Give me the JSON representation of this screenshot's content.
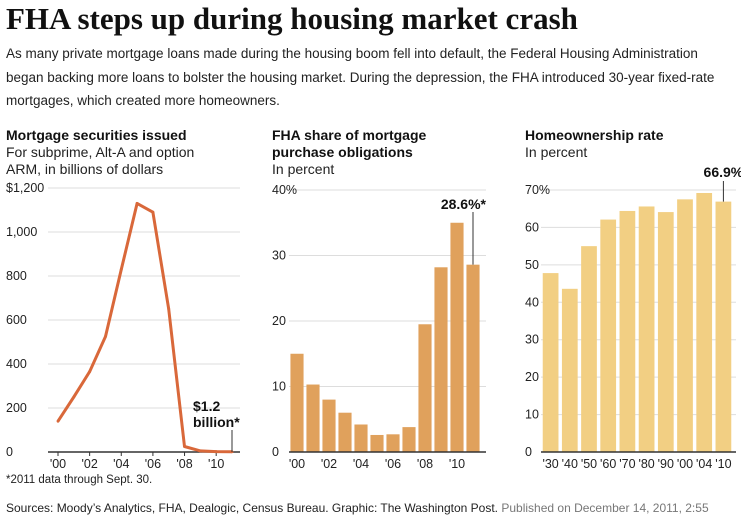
{
  "headline": "FHA steps up during housing market crash",
  "intro": "As many private mortgage loans made during the housing boom fell into default, the Federal Housing Administration began backing more loans to bolster the housing market. During the depression, the FHA introduced 30-year fixed-rate mortgages, which created more homeowners.",
  "colors": {
    "line": "#d9683a",
    "fha_bar": "#e0a15c",
    "home_bar": "#f2cf83",
    "axis": "#333333",
    "grid": "#dddddd"
  },
  "chart_data": [
    {
      "type": "line",
      "title": "Mortgage securities issued",
      "subtitle": "For subprime, Alt-A and option ARM, in billions of dollars",
      "subtitle_lines": [
        "For subprime, Alt-A and option",
        "ARM, in billions of dollars"
      ],
      "x": [
        2000,
        2001,
        2002,
        2003,
        2004,
        2005,
        2006,
        2007,
        2008,
        2009,
        2010,
        2011
      ],
      "values": [
        140,
        250,
        365,
        525,
        830,
        1130,
        1090,
        650,
        25,
        5,
        2,
        1.2
      ],
      "xlim": [
        2000,
        2011
      ],
      "ylim": [
        0,
        1200
      ],
      "yticks": [
        0,
        200,
        400,
        600,
        800,
        1000,
        1200
      ],
      "ytick_labels": [
        "0",
        "200",
        "400",
        "600",
        "800",
        "1,000",
        "$1,200"
      ],
      "xtick_labels": [
        "'00",
        "'02",
        "'04",
        "'06",
        "'08",
        "'10"
      ],
      "xtick_values": [
        2000,
        2002,
        2004,
        2006,
        2008,
        2010
      ],
      "annotation": {
        "lines": [
          "$1.2",
          "billion*"
        ],
        "x": 2011,
        "y": 1.2
      },
      "grid": true,
      "footnote": "*2011 data through Sept. 30."
    },
    {
      "type": "bar",
      "title": "FHA share of mortgage purchase obligations",
      "title_lines": [
        "FHA share of mortgage",
        "purchase obligations"
      ],
      "subtitle": "In percent",
      "categories": [
        "2000",
        "2001",
        "2002",
        "2003",
        "2004",
        "2005",
        "2006",
        "2007",
        "2008",
        "2009",
        "2010",
        "2011"
      ],
      "values": [
        15,
        10.3,
        8,
        6,
        4.2,
        2.6,
        2.7,
        3.8,
        19.5,
        28.2,
        35,
        28.6
      ],
      "ylim": [
        0,
        40
      ],
      "yticks": [
        0,
        10,
        20,
        30,
        40
      ],
      "ytick_labels": [
        "0",
        "10",
        "20",
        "30",
        "40%"
      ],
      "xtick_labels": [
        "'00",
        "'02",
        "'04",
        "'06",
        "'08",
        "'10"
      ],
      "xtick_index": [
        0,
        2,
        4,
        6,
        8,
        10
      ],
      "annotation": {
        "text": "28.6%*",
        "index": 11
      },
      "grid": true
    },
    {
      "type": "bar",
      "title": "Homeownership rate",
      "subtitle": "In percent",
      "categories": [
        "1930",
        "1940",
        "1950",
        "1960",
        "1970",
        "1980",
        "1990",
        "2000",
        "2004",
        "2010"
      ],
      "values": [
        47.8,
        43.6,
        55,
        62.1,
        64.4,
        65.6,
        64.1,
        67.5,
        69.2,
        66.9
      ],
      "ylim": [
        0,
        70
      ],
      "yticks": [
        0,
        10,
        20,
        30,
        40,
        50,
        60,
        70
      ],
      "ytick_labels": [
        "0",
        "10",
        "20",
        "30",
        "40",
        "50",
        "60",
        "70%"
      ],
      "xtick_labels": [
        "'30",
        "'40",
        "'50",
        "'60",
        "'70",
        "'80",
        "'90",
        "'00",
        "'04",
        "'10"
      ],
      "annotation": {
        "text": "66.9%",
        "index": 9
      },
      "grid": true
    }
  ],
  "sources": "Sources: Moody’s Analytics, FHA, Dealogic, Census Bureau. Graphic: The Washington Post.",
  "published": "Published on December 14, 2011, 2:55"
}
